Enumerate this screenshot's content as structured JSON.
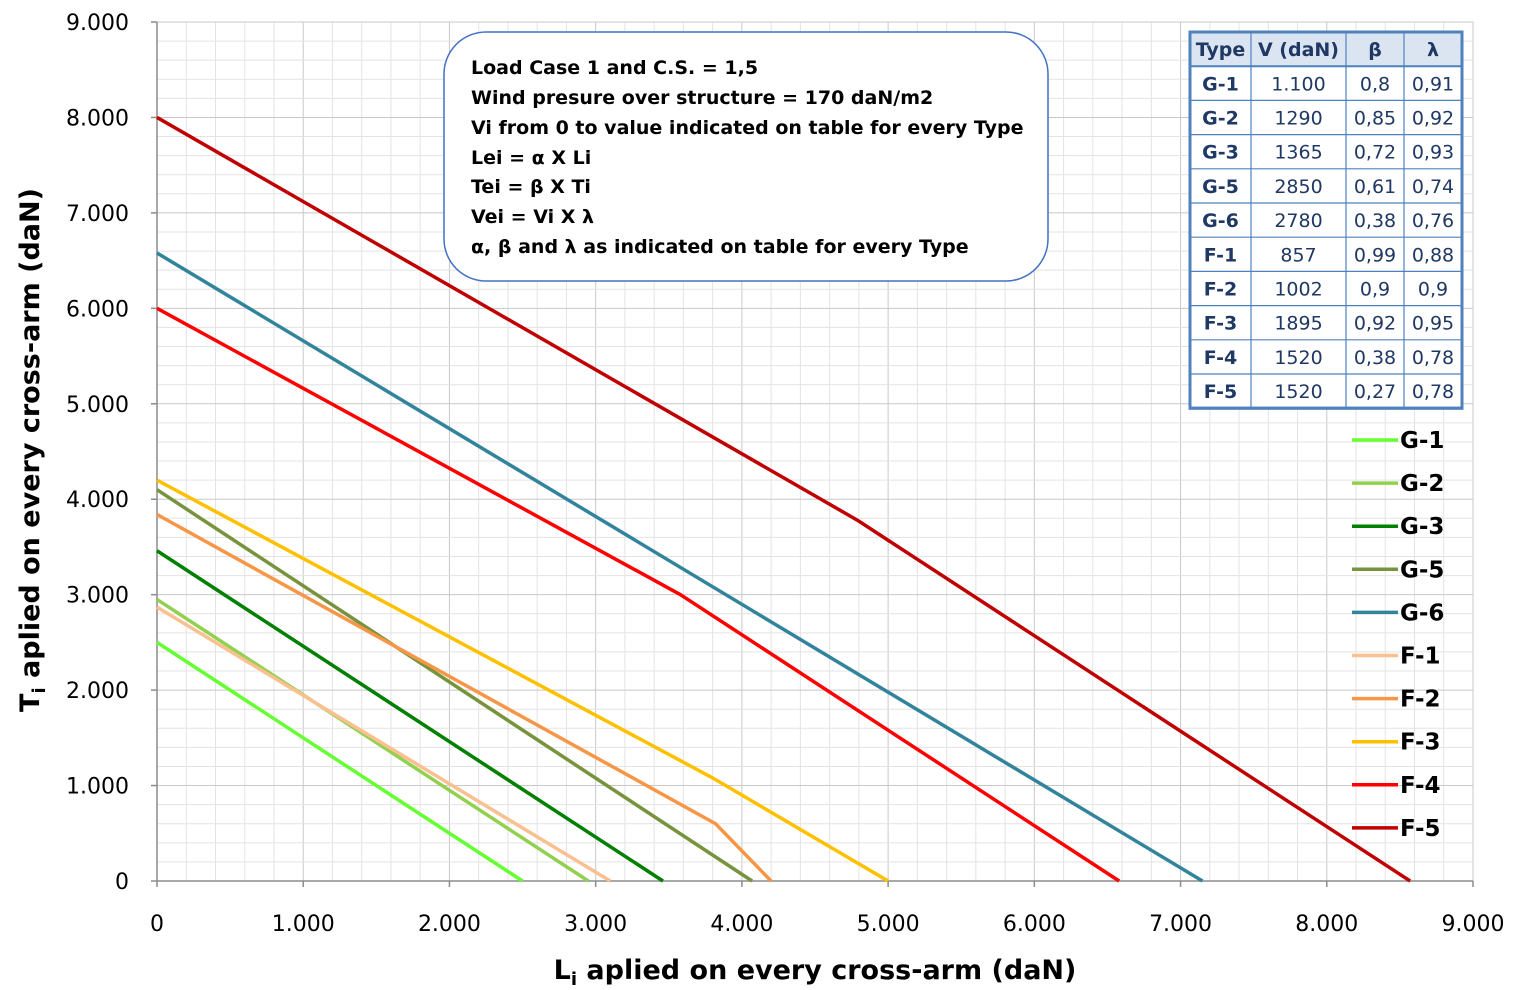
{
  "chart_data": {
    "type": "line",
    "title": "",
    "xlabel": "L",
    "xlabel_sub": "i",
    "xlabel_rest": " aplied on every cross-arm (daN)",
    "ylabel": "T",
    "ylabel_sub": "i",
    "ylabel_rest": "  aplied on every cross-arm (daN)",
    "xlim": [
      0,
      9000
    ],
    "ylim": [
      0,
      9000
    ],
    "x_ticks": [
      "0",
      "1.000",
      "2.000",
      "3.000",
      "4.000",
      "5.000",
      "6.000",
      "7.000",
      "8.000",
      "9.000"
    ],
    "y_ticks": [
      "0",
      "1.000",
      "2.000",
      "3.000",
      "4.000",
      "5.000",
      "6.000",
      "7.000",
      "8.000",
      "9.000"
    ],
    "grid": true,
    "legend_position": "right",
    "series": [
      {
        "name": "G-1",
        "color": "#66ff33",
        "points": [
          [
            0,
            2500
          ],
          [
            2500,
            0
          ]
        ]
      },
      {
        "name": "G-2",
        "color": "#92d050",
        "points": [
          [
            0,
            2950
          ],
          [
            2950,
            0
          ]
        ]
      },
      {
        "name": "G-3",
        "color": "#008000",
        "points": [
          [
            0,
            3460
          ],
          [
            3460,
            0
          ]
        ]
      },
      {
        "name": "G-5",
        "color": "#77933c",
        "points": [
          [
            0,
            4100
          ],
          [
            4070,
            0
          ]
        ]
      },
      {
        "name": "G-6",
        "color": "#31849b",
        "points": [
          [
            0,
            6580
          ],
          [
            7150,
            0
          ]
        ]
      },
      {
        "name": "F-1",
        "color": "#fac090",
        "points": [
          [
            0,
            2870
          ],
          [
            3100,
            0
          ]
        ]
      },
      {
        "name": "F-2",
        "color": "#f79646",
        "points": [
          [
            0,
            3840
          ],
          [
            3820,
            600
          ],
          [
            4200,
            0
          ]
        ]
      },
      {
        "name": "F-3",
        "color": "#ffc000",
        "points": [
          [
            0,
            4200
          ],
          [
            3800,
            1080
          ],
          [
            5000,
            0
          ]
        ]
      },
      {
        "name": "F-4",
        "color": "#ff0000",
        "points": [
          [
            0,
            6000
          ],
          [
            3580,
            3000
          ],
          [
            6580,
            0
          ]
        ]
      },
      {
        "name": "F-5",
        "color": "#c00000",
        "points": [
          [
            0,
            8000
          ],
          [
            4790,
            3780
          ],
          [
            8570,
            0
          ]
        ]
      }
    ]
  },
  "note": {
    "lines": [
      "Load Case 1 and C.S. = 1,5",
      "Wind presure over structure = 170 daN/m2",
      "Vi from 0 to value indicated on table for every Type",
      "Lei = α X Li",
      "Tei = β X Ti",
      "Vei = Vi X λ",
      "α, β and  λ as indicated on table for every Type"
    ]
  },
  "table": {
    "headers": [
      "Type",
      "V (daN)",
      "β",
      "λ"
    ],
    "rows": [
      [
        "G-1",
        "1.100",
        "0,8",
        "0,91"
      ],
      [
        "G-2",
        "1290",
        "0,85",
        "0,92"
      ],
      [
        "G-3",
        "1365",
        "0,72",
        "0,93"
      ],
      [
        "G-5",
        "2850",
        "0,61",
        "0,74"
      ],
      [
        "G-6",
        "2780",
        "0,38",
        "0,76"
      ],
      [
        "F-1",
        "857",
        "0,99",
        "0,88"
      ],
      [
        "F-2",
        "1002",
        "0,9",
        "0,9"
      ],
      [
        "F-3",
        "1895",
        "0,92",
        "0,95"
      ],
      [
        "F-4",
        "1520",
        "0,38",
        "0,78"
      ],
      [
        "F-5",
        "1520",
        "0,27",
        "0,78"
      ]
    ],
    "border_color": "#4f81bd",
    "header_bg": "#dbe5f1"
  }
}
